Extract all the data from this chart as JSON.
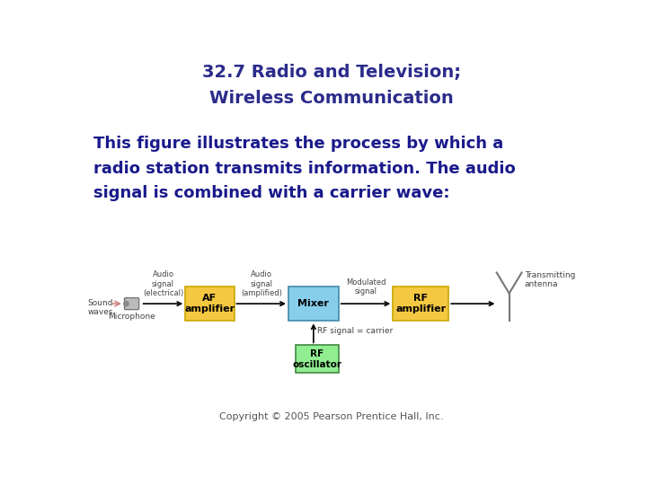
{
  "title_line1": "32.7 Radio and Television;",
  "title_line2": "Wireless Communication",
  "title_color": "#2B2B8B",
  "title_fontsize": 14,
  "body_text_line1": "This figure illustrates the process by which a",
  "body_text_line2": "radio station transmits information. The audio",
  "body_text_line3": "signal is combined with a carrier wave:",
  "body_color": "#1a1a8c",
  "body_fontsize": 13,
  "copyright": "Copyright © 2005 Pearson Prentice Hall, Inc.",
  "copyright_fontsize": 8,
  "bg_color": "#ffffff",
  "box_af_color": "#F5C842",
  "box_af_edge": "#C8A800",
  "box_mixer_color": "#87CEEB",
  "box_mixer_edge": "#4488AA",
  "box_rf_amp_color": "#F5C842",
  "box_rf_amp_edge": "#C8A800",
  "box_rf_osc_color": "#90EE90",
  "box_rf_osc_edge": "#448844",
  "box_text_color": "#000000",
  "label_color": "#444444",
  "arrow_color": "#000000",
  "sound_arrow_color": "#CC8888",
  "mic_color": "#AAAAAA",
  "mic_edge": "#555555",
  "antenna_color": "#777777"
}
